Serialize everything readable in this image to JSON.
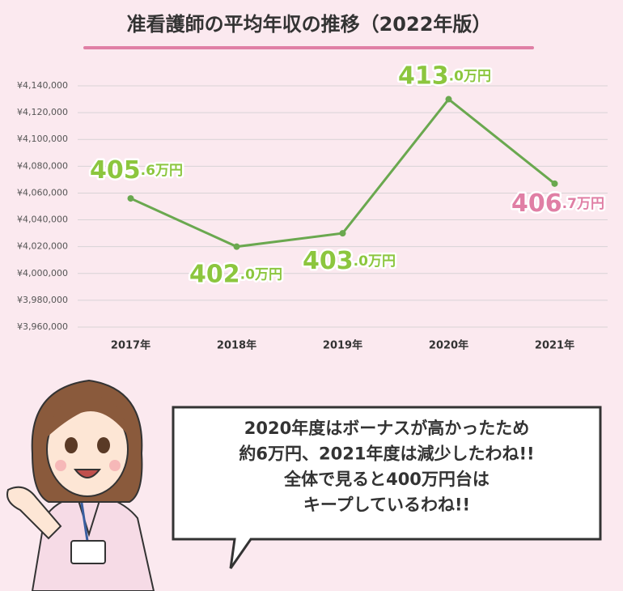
{
  "chart_data": {
    "type": "line",
    "title": "准看護師の平均年収の推移（2022年版）",
    "categories": [
      "2017年",
      "2018年",
      "2019年",
      "2020年",
      "2021年"
    ],
    "values": [
      4056000,
      4020000,
      4030000,
      4130000,
      4067000
    ],
    "value_labels": [
      "405.6万円",
      "402.0万円",
      "403.0万円",
      "413.0万円",
      "406.7万円"
    ],
    "value_label_colors": [
      "#8cc63e",
      "#8cc63e",
      "#8cc63e",
      "#8cc63e",
      "#e07fa5"
    ],
    "color": "#6aa84f",
    "ylim": [
      3960000,
      4140000
    ],
    "yticks": [
      {
        "value": 3960000,
        "label": "¥3,960,000"
      },
      {
        "value": 3980000,
        "label": "¥3,980,000"
      },
      {
        "value": 4000000,
        "label": "¥4,000,000"
      },
      {
        "value": 4020000,
        "label": "¥4,020,000"
      },
      {
        "value": 4040000,
        "label": "¥4,040,000"
      },
      {
        "value": 4060000,
        "label": "¥4,060,000"
      },
      {
        "value": 4080000,
        "label": "¥4,080,000"
      },
      {
        "value": 4100000,
        "label": "¥4,100,000"
      },
      {
        "value": 4120000,
        "label": "¥4,120,000"
      },
      {
        "value": 4140000,
        "label": "¥4,140,000"
      }
    ],
    "grid": true
  },
  "speech_bubble": {
    "lines": [
      "2020年度はボーナスが高かったため",
      "約6万円、2021年度は減少したわね!!",
      "全体で見ると400万円台は",
      "キープしているわね!!"
    ]
  }
}
